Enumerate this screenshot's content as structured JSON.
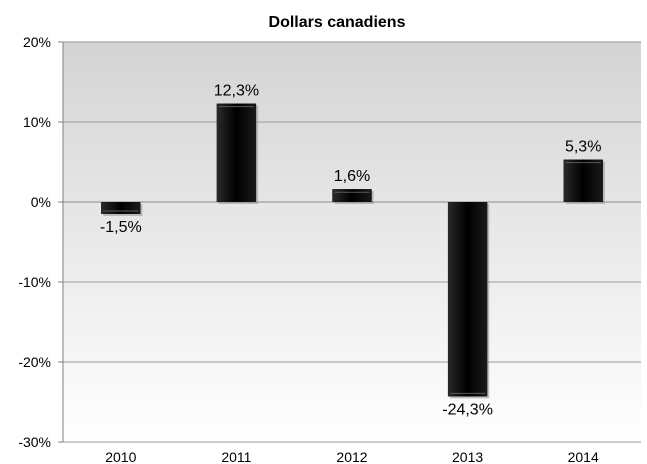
{
  "chart_data": {
    "type": "bar",
    "title": "Dollars canadiens",
    "categories": [
      "2010",
      "2011",
      "2012",
      "2013",
      "2014"
    ],
    "values": [
      -1.5,
      12.3,
      1.6,
      -24.3,
      5.3
    ],
    "data_labels": [
      "-1,5%",
      "12,3%",
      "1,6%",
      "-24,3%",
      "5,3%"
    ],
    "ylim": [
      -30,
      20
    ],
    "y_ticks": [
      20,
      10,
      0,
      -10,
      -20,
      -30
    ],
    "y_tick_labels": [
      "20%",
      "10%",
      "0%",
      "-10%",
      "-20%",
      "-30%"
    ],
    "xlabel": "",
    "ylabel": "",
    "grid": true,
    "legend": "none",
    "colors": {
      "bar": "#0a0a0a",
      "grid": "#9a9a9a",
      "plot_bg_top": "#d4d4d4",
      "plot_bg_bottom": "#ffffff"
    }
  }
}
